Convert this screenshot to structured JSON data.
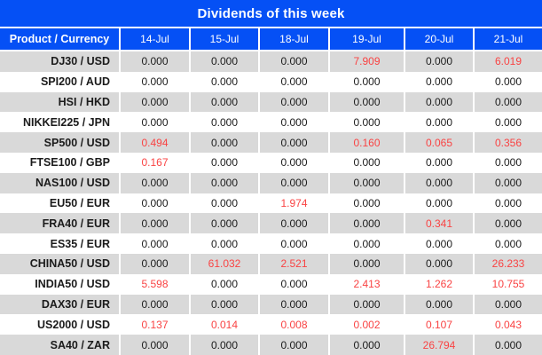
{
  "chart_data": {
    "type": "table",
    "title": "Dividends of this week",
    "product_header": "Product / Currency",
    "columns": [
      "14-Jul",
      "15-Jul",
      "18-Jul",
      "19-Jul",
      "20-Jul",
      "21-Jul"
    ],
    "rows": [
      {
        "product": "DJ30 / USD",
        "values": [
          "0.000",
          "0.000",
          "0.000",
          "7.909",
          "0.000",
          "6.019"
        ]
      },
      {
        "product": "SPI200 / AUD",
        "values": [
          "0.000",
          "0.000",
          "0.000",
          "0.000",
          "0.000",
          "0.000"
        ]
      },
      {
        "product": "HSI / HKD",
        "values": [
          "0.000",
          "0.000",
          "0.000",
          "0.000",
          "0.000",
          "0.000"
        ]
      },
      {
        "product": "NIKKEI225 / JPN",
        "values": [
          "0.000",
          "0.000",
          "0.000",
          "0.000",
          "0.000",
          "0.000"
        ]
      },
      {
        "product": "SP500 / USD",
        "values": [
          "0.494",
          "0.000",
          "0.000",
          "0.160",
          "0.065",
          "0.356"
        ]
      },
      {
        "product": "FTSE100 / GBP",
        "values": [
          "0.167",
          "0.000",
          "0.000",
          "0.000",
          "0.000",
          "0.000"
        ]
      },
      {
        "product": "NAS100 / USD",
        "values": [
          "0.000",
          "0.000",
          "0.000",
          "0.000",
          "0.000",
          "0.000"
        ]
      },
      {
        "product": "EU50 / EUR",
        "values": [
          "0.000",
          "0.000",
          "1.974",
          "0.000",
          "0.000",
          "0.000"
        ]
      },
      {
        "product": "FRA40 / EUR",
        "values": [
          "0.000",
          "0.000",
          "0.000",
          "0.000",
          "0.341",
          "0.000"
        ]
      },
      {
        "product": "ES35 / EUR",
        "values": [
          "0.000",
          "0.000",
          "0.000",
          "0.000",
          "0.000",
          "0.000"
        ]
      },
      {
        "product": "CHINA50 / USD",
        "values": [
          "0.000",
          "61.032",
          "2.521",
          "0.000",
          "0.000",
          "26.233"
        ]
      },
      {
        "product": "INDIA50 / USD",
        "values": [
          "5.598",
          "0.000",
          "0.000",
          "2.413",
          "1.262",
          "10.755"
        ]
      },
      {
        "product": "DAX30 / EUR",
        "values": [
          "0.000",
          "0.000",
          "0.000",
          "0.000",
          "0.000",
          "0.000"
        ]
      },
      {
        "product": "US2000 / USD",
        "values": [
          "0.137",
          "0.014",
          "0.008",
          "0.002",
          "0.107",
          "0.043"
        ]
      },
      {
        "product": "SA40 / ZAR",
        "values": [
          "0.000",
          "0.000",
          "0.000",
          "0.000",
          "26.794",
          "0.000"
        ]
      }
    ],
    "layout_hints": {
      "zero_value_text": "0.000",
      "nonzero_values_highlighted": true,
      "row_striping": "alternating gray/white starting gray"
    }
  },
  "colors": {
    "header_blue": "#0550f5",
    "row_gray": "#d9d9d9",
    "row_white": "#ffffff",
    "value_black": "#1b1b1b",
    "value_red": "#f94343",
    "header_text": "#ffffff"
  }
}
